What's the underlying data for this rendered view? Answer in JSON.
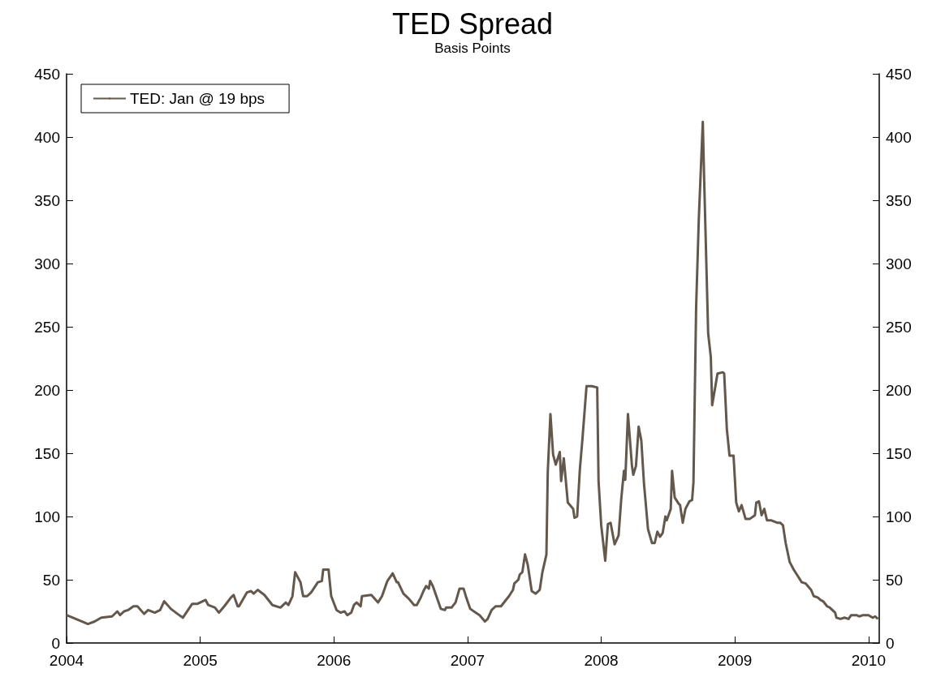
{
  "chart_data": {
    "type": "line",
    "title": "TED Spread",
    "subtitle": "Basis Points",
    "x": [
      2004.0,
      2004.07,
      2004.16,
      2004.21,
      2004.26,
      2004.34,
      2004.38,
      2004.4,
      2004.43,
      2004.46,
      2004.5,
      2004.53,
      2004.58,
      2004.61,
      2004.66,
      2004.7,
      2004.73,
      2004.78,
      2004.83,
      2004.87,
      2004.94,
      2004.98,
      2005.04,
      2005.06,
      2005.11,
      2005.14,
      2005.18,
      2005.23,
      2005.25,
      2005.28,
      2005.29,
      2005.35,
      2005.38,
      2005.4,
      2005.43,
      2005.48,
      2005.54,
      2005.6,
      2005.64,
      2005.66,
      2005.69,
      2005.71,
      2005.75,
      2005.77,
      2005.8,
      2005.83,
      2005.88,
      2005.91,
      2005.92,
      2005.96,
      2005.98,
      2006.02,
      2006.05,
      2006.08,
      2006.1,
      2006.13,
      2006.15,
      2006.17,
      2006.2,
      2006.21,
      2006.28,
      2006.33,
      2006.36,
      2006.4,
      2006.44,
      2006.47,
      2006.48,
      2006.52,
      2006.56,
      2006.6,
      2006.62,
      2006.65,
      2006.67,
      2006.69,
      2006.71,
      2006.72,
      2006.74,
      2006.78,
      2006.8,
      2006.83,
      2006.84,
      2006.88,
      2006.91,
      2006.94,
      2006.97,
      2006.99,
      2007.02,
      2007.06,
      2007.09,
      2007.13,
      2007.15,
      2007.18,
      2007.21,
      2007.25,
      2007.28,
      2007.31,
      2007.34,
      2007.35,
      2007.38,
      2007.39,
      2007.41,
      2007.43,
      2007.45,
      2007.48,
      2007.51,
      2007.54,
      2007.56,
      2007.59,
      2007.6,
      2007.62,
      2007.64,
      2007.66,
      2007.69,
      2007.7,
      2007.72,
      2007.75,
      2007.79,
      2007.8,
      2007.82,
      2007.84,
      2007.86,
      2007.89,
      2007.93,
      2007.97,
      2007.98,
      2008.0,
      2008.03,
      2008.05,
      2008.07,
      2008.1,
      2008.13,
      2008.15,
      2008.17,
      2008.18,
      2008.2,
      2008.23,
      2008.24,
      2008.26,
      2008.28,
      2008.3,
      2008.32,
      2008.35,
      2008.38,
      2008.4,
      2008.42,
      2008.44,
      2008.46,
      2008.48,
      2008.49,
      2008.52,
      2008.53,
      2008.55,
      2008.58,
      2008.59,
      2008.61,
      2008.63,
      2008.66,
      2008.68,
      2008.69,
      2008.71,
      2008.73,
      2008.76,
      2008.77,
      2008.8,
      2008.82,
      2008.83,
      2008.87,
      2008.91,
      2008.92,
      2008.94,
      2008.96,
      2008.99,
      2009.01,
      2009.03,
      2009.05,
      2009.08,
      2009.11,
      2009.15,
      2009.16,
      2009.18,
      2009.2,
      2009.22,
      2009.24,
      2009.27,
      2009.32,
      2009.34,
      2009.36,
      2009.38,
      2009.41,
      2009.44,
      2009.47,
      2009.5,
      2009.53,
      2009.57,
      2009.59,
      2009.62,
      2009.64,
      2009.66,
      2009.69,
      2009.71,
      2009.75,
      2009.76,
      2009.79,
      2009.82,
      2009.85,
      2009.87,
      2009.91,
      2009.93,
      2009.96,
      2010.0,
      2010.03,
      2010.05,
      2010.07
    ],
    "series": [
      {
        "name": "TED: Jan @ 19 bps",
        "color": "#64584d",
        "values": [
          22,
          19,
          15,
          17,
          20,
          21,
          25,
          22,
          25,
          26,
          29,
          29,
          23,
          26,
          24,
          26,
          33,
          27,
          23,
          20,
          31,
          31,
          34,
          30,
          28,
          24,
          29,
          36,
          38,
          29,
          29,
          40,
          41,
          39,
          42,
          38,
          30,
          28,
          32,
          30,
          37,
          56,
          48,
          37,
          37,
          40,
          48,
          49,
          58,
          58,
          37,
          26,
          24,
          25,
          22,
          24,
          30,
          32,
          29,
          37,
          38,
          32,
          37,
          49,
          55,
          48,
          48,
          39,
          35,
          30,
          30,
          36,
          41,
          45,
          43,
          49,
          45,
          33,
          27,
          26,
          28,
          28,
          32,
          43,
          43,
          36,
          27,
          24,
          22,
          17,
          19,
          26,
          29,
          29,
          33,
          37,
          42,
          47,
          50,
          54,
          56,
          70,
          62,
          41,
          39,
          42,
          56,
          70,
          135,
          181,
          149,
          141,
          151,
          128,
          146,
          111,
          106,
          99,
          100,
          137,
          162,
          203,
          203,
          202,
          128,
          93,
          65,
          94,
          95,
          78,
          85,
          114,
          136,
          129,
          181,
          140,
          133,
          140,
          171,
          160,
          126,
          90,
          79,
          79,
          88,
          84,
          87,
          100,
          97,
          106,
          136,
          115,
          110,
          109,
          95,
          106,
          112,
          113,
          127,
          265,
          335,
          412,
          367,
          245,
          226,
          188,
          213,
          214,
          213,
          169,
          148,
          148,
          111,
          104,
          109,
          98,
          98,
          101,
          111,
          112,
          101,
          106,
          97,
          97,
          95,
          95,
          93,
          79,
          64,
          58,
          53,
          48,
          47,
          42,
          37,
          36,
          34,
          33,
          29,
          28,
          24,
          20,
          19,
          20,
          19,
          22,
          22,
          21,
          22,
          22,
          20,
          21,
          19
        ]
      }
    ],
    "xlim": [
      2004,
      2010.08
    ],
    "xticks": [
      2004,
      2005,
      2006,
      2007,
      2008,
      2009,
      2010
    ],
    "ylim": [
      0,
      450
    ],
    "yticks": [
      0,
      50,
      100,
      150,
      200,
      250,
      300,
      350,
      400,
      450
    ],
    "y2lim": [
      0,
      450
    ],
    "y2ticks": [
      0,
      50,
      100,
      150,
      200,
      250,
      300,
      350,
      400,
      450
    ],
    "legend": "top left",
    "marker": "none",
    "line_style": "solid"
  }
}
